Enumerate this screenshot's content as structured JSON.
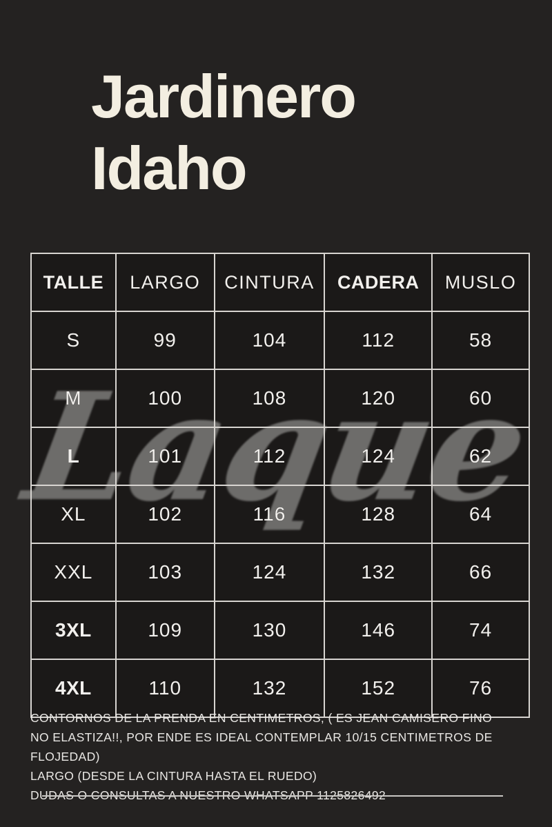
{
  "title": {
    "line1": "Jardinero",
    "line2": "Idaho"
  },
  "watermark": {
    "text": "Laque"
  },
  "size_table": {
    "columns": [
      {
        "label": "TALLE",
        "bold": true
      },
      {
        "label": "LARGO",
        "bold": false
      },
      {
        "label": "CINTURA",
        "bold": false
      },
      {
        "label": "CADERA",
        "bold": true
      },
      {
        "label": "MUSLO",
        "bold": false
      }
    ],
    "rows": [
      {
        "size": "S",
        "bold": false,
        "values": [
          "99",
          "104",
          "112",
          "58"
        ]
      },
      {
        "size": "M",
        "bold": false,
        "values": [
          "100",
          "108",
          "120",
          "60"
        ]
      },
      {
        "size": "L",
        "bold": true,
        "values": [
          "101",
          "112",
          "124",
          "62"
        ]
      },
      {
        "size": "XL",
        "bold": false,
        "values": [
          "102",
          "116",
          "128",
          "64"
        ]
      },
      {
        "size": "XXL",
        "bold": false,
        "values": [
          "103",
          "124",
          "132",
          "66"
        ]
      },
      {
        "size": "3XL",
        "bold": true,
        "values": [
          "109",
          "130",
          "146",
          "74"
        ]
      },
      {
        "size": "4XL",
        "bold": true,
        "values": [
          "110",
          "132",
          "152",
          "76"
        ]
      }
    ]
  },
  "footer": {
    "lines": [
      "CONTORNOS DE LA PRENDA  EN CENTIMETROS, ( ES JEAN CAMISERO FINO",
      "NO ELASTIZA!!, POR ENDE ES IDEAL CONTEMPLAR 10/15 CENTIMETROS DE",
      "FLOJEDAD)",
      "LARGO (DESDE LA CINTURA HASTA EL RUEDO)",
      "DUDAS O CONSULTAS A NUESTRO WHATSAPP 1125826492"
    ]
  },
  "colors": {
    "page_background": "#242221",
    "table_background": "#1b1918",
    "grid_line": "#d8d5d1",
    "title_text": "#f3eee1",
    "body_text": "#f2f0ed",
    "watermark": "#6d6c6a"
  }
}
